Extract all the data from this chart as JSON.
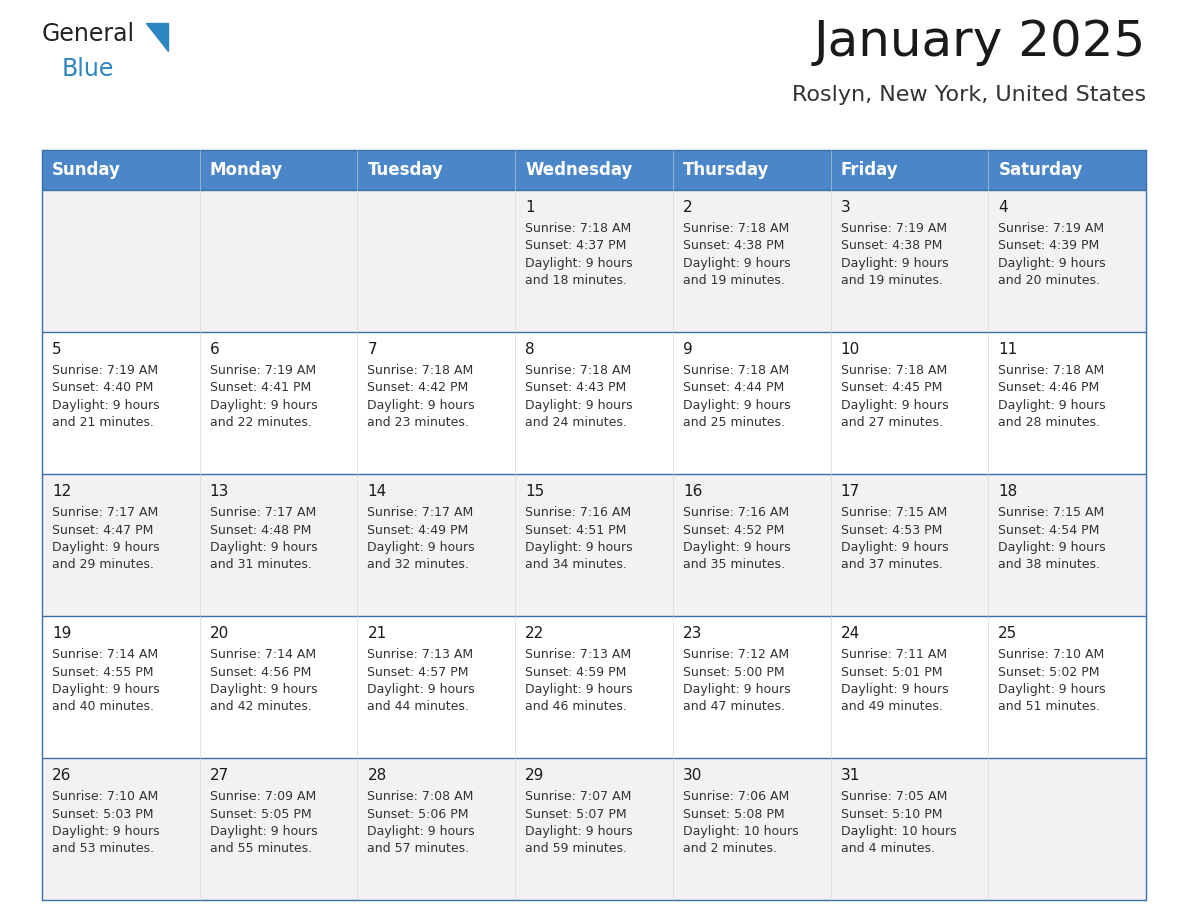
{
  "title": "January 2025",
  "subtitle": "Roslyn, New York, United States",
  "header_color": "#4a86c8",
  "header_text_color": "#ffffff",
  "row_bg_odd": "#f2f2f2",
  "row_bg_even": "#ffffff",
  "day_names": [
    "Sunday",
    "Monday",
    "Tuesday",
    "Wednesday",
    "Thursday",
    "Friday",
    "Saturday"
  ],
  "days": [
    {
      "day": 1,
      "col": 3,
      "row": 0,
      "sunrise": "7:18 AM",
      "sunset": "4:37 PM",
      "daylight_h": "9 hours",
      "daylight_m": "and 18 minutes."
    },
    {
      "day": 2,
      "col": 4,
      "row": 0,
      "sunrise": "7:18 AM",
      "sunset": "4:38 PM",
      "daylight_h": "9 hours",
      "daylight_m": "and 19 minutes."
    },
    {
      "day": 3,
      "col": 5,
      "row": 0,
      "sunrise": "7:19 AM",
      "sunset": "4:38 PM",
      "daylight_h": "9 hours",
      "daylight_m": "and 19 minutes."
    },
    {
      "day": 4,
      "col": 6,
      "row": 0,
      "sunrise": "7:19 AM",
      "sunset": "4:39 PM",
      "daylight_h": "9 hours",
      "daylight_m": "and 20 minutes."
    },
    {
      "day": 5,
      "col": 0,
      "row": 1,
      "sunrise": "7:19 AM",
      "sunset": "4:40 PM",
      "daylight_h": "9 hours",
      "daylight_m": "and 21 minutes."
    },
    {
      "day": 6,
      "col": 1,
      "row": 1,
      "sunrise": "7:19 AM",
      "sunset": "4:41 PM",
      "daylight_h": "9 hours",
      "daylight_m": "and 22 minutes."
    },
    {
      "day": 7,
      "col": 2,
      "row": 1,
      "sunrise": "7:18 AM",
      "sunset": "4:42 PM",
      "daylight_h": "9 hours",
      "daylight_m": "and 23 minutes."
    },
    {
      "day": 8,
      "col": 3,
      "row": 1,
      "sunrise": "7:18 AM",
      "sunset": "4:43 PM",
      "daylight_h": "9 hours",
      "daylight_m": "and 24 minutes."
    },
    {
      "day": 9,
      "col": 4,
      "row": 1,
      "sunrise": "7:18 AM",
      "sunset": "4:44 PM",
      "daylight_h": "9 hours",
      "daylight_m": "and 25 minutes."
    },
    {
      "day": 10,
      "col": 5,
      "row": 1,
      "sunrise": "7:18 AM",
      "sunset": "4:45 PM",
      "daylight_h": "9 hours",
      "daylight_m": "and 27 minutes."
    },
    {
      "day": 11,
      "col": 6,
      "row": 1,
      "sunrise": "7:18 AM",
      "sunset": "4:46 PM",
      "daylight_h": "9 hours",
      "daylight_m": "and 28 minutes."
    },
    {
      "day": 12,
      "col": 0,
      "row": 2,
      "sunrise": "7:17 AM",
      "sunset": "4:47 PM",
      "daylight_h": "9 hours",
      "daylight_m": "and 29 minutes."
    },
    {
      "day": 13,
      "col": 1,
      "row": 2,
      "sunrise": "7:17 AM",
      "sunset": "4:48 PM",
      "daylight_h": "9 hours",
      "daylight_m": "and 31 minutes."
    },
    {
      "day": 14,
      "col": 2,
      "row": 2,
      "sunrise": "7:17 AM",
      "sunset": "4:49 PM",
      "daylight_h": "9 hours",
      "daylight_m": "and 32 minutes."
    },
    {
      "day": 15,
      "col": 3,
      "row": 2,
      "sunrise": "7:16 AM",
      "sunset": "4:51 PM",
      "daylight_h": "9 hours",
      "daylight_m": "and 34 minutes."
    },
    {
      "day": 16,
      "col": 4,
      "row": 2,
      "sunrise": "7:16 AM",
      "sunset": "4:52 PM",
      "daylight_h": "9 hours",
      "daylight_m": "and 35 minutes."
    },
    {
      "day": 17,
      "col": 5,
      "row": 2,
      "sunrise": "7:15 AM",
      "sunset": "4:53 PM",
      "daylight_h": "9 hours",
      "daylight_m": "and 37 minutes."
    },
    {
      "day": 18,
      "col": 6,
      "row": 2,
      "sunrise": "7:15 AM",
      "sunset": "4:54 PM",
      "daylight_h": "9 hours",
      "daylight_m": "and 38 minutes."
    },
    {
      "day": 19,
      "col": 0,
      "row": 3,
      "sunrise": "7:14 AM",
      "sunset": "4:55 PM",
      "daylight_h": "9 hours",
      "daylight_m": "and 40 minutes."
    },
    {
      "day": 20,
      "col": 1,
      "row": 3,
      "sunrise": "7:14 AM",
      "sunset": "4:56 PM",
      "daylight_h": "9 hours",
      "daylight_m": "and 42 minutes."
    },
    {
      "day": 21,
      "col": 2,
      "row": 3,
      "sunrise": "7:13 AM",
      "sunset": "4:57 PM",
      "daylight_h": "9 hours",
      "daylight_m": "and 44 minutes."
    },
    {
      "day": 22,
      "col": 3,
      "row": 3,
      "sunrise": "7:13 AM",
      "sunset": "4:59 PM",
      "daylight_h": "9 hours",
      "daylight_m": "and 46 minutes."
    },
    {
      "day": 23,
      "col": 4,
      "row": 3,
      "sunrise": "7:12 AM",
      "sunset": "5:00 PM",
      "daylight_h": "9 hours",
      "daylight_m": "and 47 minutes."
    },
    {
      "day": 24,
      "col": 5,
      "row": 3,
      "sunrise": "7:11 AM",
      "sunset": "5:01 PM",
      "daylight_h": "9 hours",
      "daylight_m": "and 49 minutes."
    },
    {
      "day": 25,
      "col": 6,
      "row": 3,
      "sunrise": "7:10 AM",
      "sunset": "5:02 PM",
      "daylight_h": "9 hours",
      "daylight_m": "and 51 minutes."
    },
    {
      "day": 26,
      "col": 0,
      "row": 4,
      "sunrise": "7:10 AM",
      "sunset": "5:03 PM",
      "daylight_h": "9 hours",
      "daylight_m": "and 53 minutes."
    },
    {
      "day": 27,
      "col": 1,
      "row": 4,
      "sunrise": "7:09 AM",
      "sunset": "5:05 PM",
      "daylight_h": "9 hours",
      "daylight_m": "and 55 minutes."
    },
    {
      "day": 28,
      "col": 2,
      "row": 4,
      "sunrise": "7:08 AM",
      "sunset": "5:06 PM",
      "daylight_h": "9 hours",
      "daylight_m": "and 57 minutes."
    },
    {
      "day": 29,
      "col": 3,
      "row": 4,
      "sunrise": "7:07 AM",
      "sunset": "5:07 PM",
      "daylight_h": "9 hours",
      "daylight_m": "and 59 minutes."
    },
    {
      "day": 30,
      "col": 4,
      "row": 4,
      "sunrise": "7:06 AM",
      "sunset": "5:08 PM",
      "daylight_h": "10 hours",
      "daylight_m": "and 2 minutes."
    },
    {
      "day": 31,
      "col": 5,
      "row": 4,
      "sunrise": "7:05 AM",
      "sunset": "5:10 PM",
      "daylight_h": "10 hours",
      "daylight_m": "and 4 minutes."
    }
  ],
  "num_rows": 5,
  "num_cols": 7,
  "logo_general_color": "#222222",
  "logo_blue_color": "#2e86c1",
  "logo_triangle_color": "#2e86c1",
  "border_color": "#3a6ea8",
  "line_color": "#3a6ea8",
  "title_fontsize": 36,
  "subtitle_fontsize": 16,
  "header_fontsize": 12,
  "daynum_fontsize": 11,
  "cell_text_fontsize": 9
}
